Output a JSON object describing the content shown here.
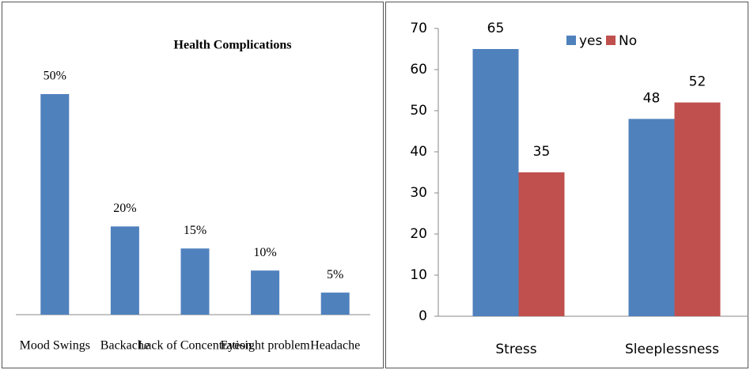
{
  "chart_data": [
    {
      "type": "bar",
      "title": "Health Complications",
      "categories": [
        "Mood Swings",
        "Backache",
        "Lack of Concentration",
        "Eyesight problem",
        "Headache"
      ],
      "values": [
        50,
        20,
        15,
        10,
        5
      ],
      "value_labels": [
        "50%",
        "20%",
        "15%",
        "10%",
        "5%"
      ],
      "color": "#4f81bd"
    },
    {
      "type": "bar",
      "categories": [
        "Stress",
        "Sleeplessness"
      ],
      "series": [
        {
          "name": "yes",
          "color": "#4f81bd",
          "values": [
            65,
            48
          ]
        },
        {
          "name": "No",
          "color": "#c0504d",
          "values": [
            35,
            52
          ]
        }
      ],
      "ylim": [
        0,
        70
      ],
      "yticks": [
        0,
        10,
        20,
        30,
        40,
        50,
        60,
        70
      ],
      "legend": "top"
    }
  ]
}
